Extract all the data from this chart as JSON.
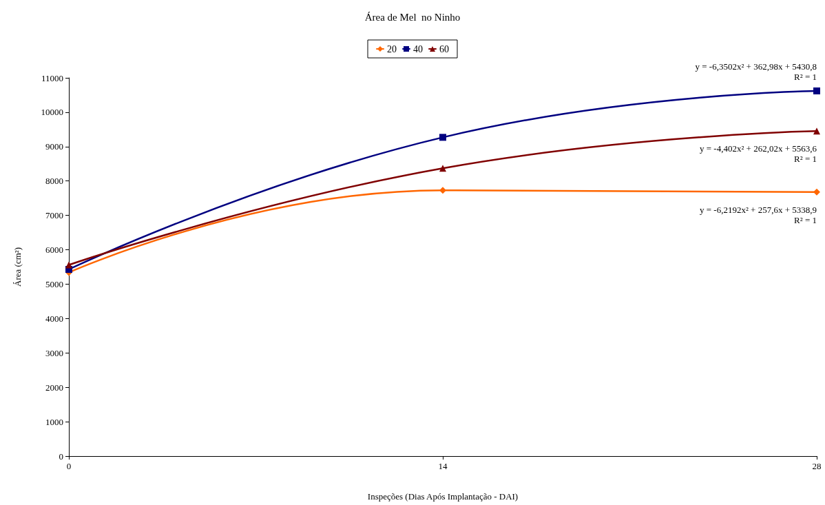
{
  "chart_data": {
    "type": "line",
    "title": "Área de Mel  no Ninho",
    "xlabel": "Inspeções (Dias Após Implantação - DAI)",
    "ylabel": "Área (cm²)",
    "x": [
      0,
      14,
      28
    ],
    "series": [
      {
        "name": "20",
        "color": "#ff6600",
        "marker": "diamond",
        "values": [
          5340,
          7730,
          7680
        ]
      },
      {
        "name": "40",
        "color": "#000080",
        "marker": "square",
        "values": [
          5430,
          9270,
          10620
        ]
      },
      {
        "name": "60",
        "color": "#800000",
        "marker": "triangle",
        "values": [
          5560,
          8370,
          9450
        ]
      }
    ],
    "annotations": [
      "y = -6,3502x² + 362,98x + 5430,8\nR² = 1",
      "y = -4,402x² + 262,02x + 5563,6\nR² = 1",
      "y = -6,2192x² + 257,6x + 5338,9\nR² = 1"
    ],
    "xlim": [
      0,
      28
    ],
    "xticks": [
      0,
      14,
      28
    ],
    "ylim": [
      0,
      11000
    ],
    "yticks": [
      0,
      1000,
      2000,
      3000,
      4000,
      5000,
      6000,
      7000,
      8000,
      9000,
      10000,
      11000
    ],
    "grid": false,
    "legend": "top",
    "line_style": "solid"
  }
}
